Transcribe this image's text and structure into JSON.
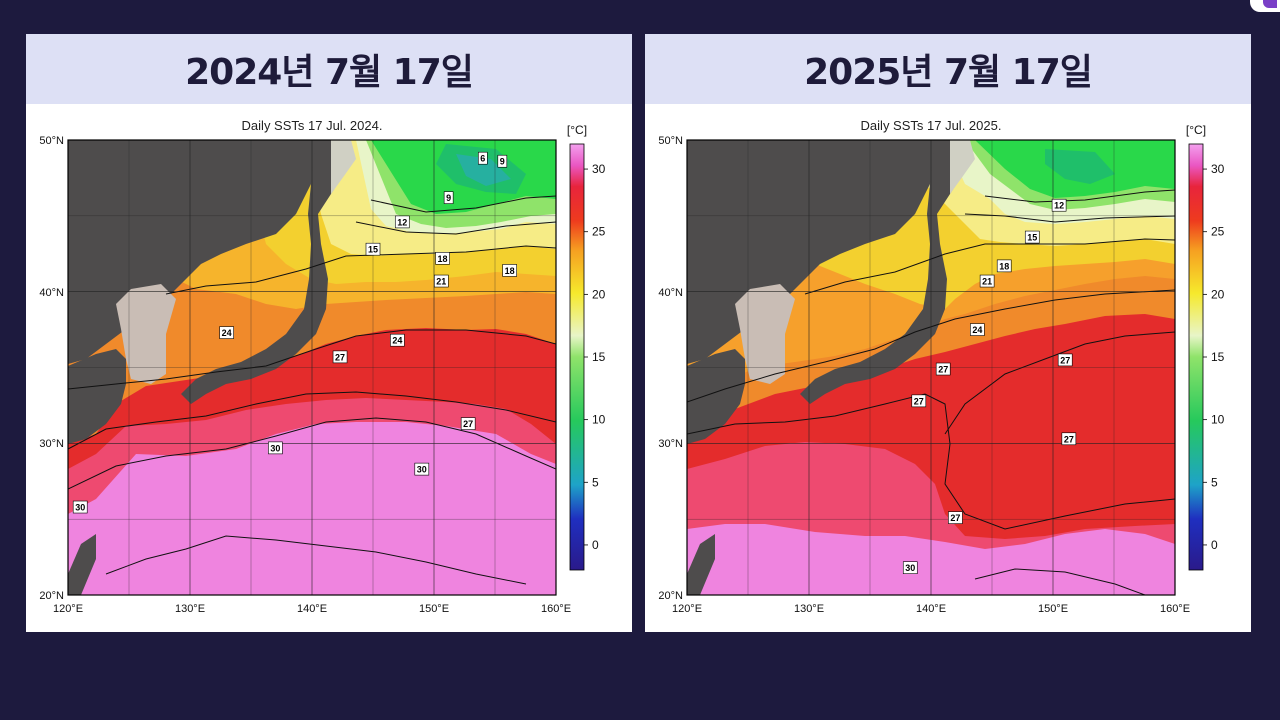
{
  "panels": [
    {
      "heading": "2024년 7월 17일",
      "map_title": "Daily SSTs 17 Jul. 2024.",
      "contours": [
        {
          "label": "6",
          "lon": 154.0,
          "lat": 48.8
        },
        {
          "label": "9",
          "lon": 155.6,
          "lat": 48.6
        },
        {
          "label": "9",
          "lon": 151.2,
          "lat": 46.2
        },
        {
          "label": "12",
          "lon": 147.4,
          "lat": 44.6
        },
        {
          "label": "15",
          "lon": 145.0,
          "lat": 42.8
        },
        {
          "label": "18",
          "lon": 150.7,
          "lat": 42.2
        },
        {
          "label": "18",
          "lon": 156.2,
          "lat": 41.4
        },
        {
          "label": "21",
          "lon": 150.6,
          "lat": 40.7
        },
        {
          "label": "24",
          "lon": 133.0,
          "lat": 37.3
        },
        {
          "label": "24",
          "lon": 147.0,
          "lat": 36.8
        },
        {
          "label": "27",
          "lon": 142.3,
          "lat": 35.7
        },
        {
          "label": "27",
          "lon": 152.8,
          "lat": 31.3
        },
        {
          "label": "30",
          "lon": 137.0,
          "lat": 29.7
        },
        {
          "label": "30",
          "lon": 149.0,
          "lat": 28.3
        },
        {
          "label": "30",
          "lon": 121.0,
          "lat": 25.8
        }
      ]
    },
    {
      "heading": "2025년 7월 17일",
      "map_title": "Daily SSTs 17 Jul. 2025.",
      "contours": [
        {
          "label": "12",
          "lon": 150.5,
          "lat": 45.7
        },
        {
          "label": "15",
          "lon": 148.3,
          "lat": 43.6
        },
        {
          "label": "18",
          "lon": 146.0,
          "lat": 41.7
        },
        {
          "label": "21",
          "lon": 144.6,
          "lat": 40.7
        },
        {
          "label": "24",
          "lon": 143.8,
          "lat": 37.5
        },
        {
          "label": "27",
          "lon": 151.0,
          "lat": 35.5
        },
        {
          "label": "27",
          "lon": 141.0,
          "lat": 34.9
        },
        {
          "label": "27",
          "lon": 139.0,
          "lat": 32.8
        },
        {
          "label": "27",
          "lon": 151.3,
          "lat": 30.3
        },
        {
          "label": "27",
          "lon": 142.0,
          "lat": 25.1
        },
        {
          "label": "30",
          "lon": 138.3,
          "lat": 21.8
        }
      ]
    }
  ],
  "map": {
    "lon_ticks": [
      "120°E",
      "130°E",
      "140°E",
      "150°E",
      "160°E"
    ],
    "lat_ticks": [
      "50°N",
      "40°N",
      "30°N",
      "20°N"
    ],
    "lon_range": [
      120,
      160
    ],
    "lat_range": [
      20,
      50
    ]
  },
  "colorbar": {
    "unit": "[°C]",
    "ticks": [
      "30",
      "25",
      "20",
      "15",
      "10",
      "5",
      "0"
    ],
    "tick_values": [
      30,
      25,
      20,
      15,
      10,
      5,
      0
    ],
    "range": [
      -2,
      32
    ]
  },
  "colors": {
    "background": "#1d1a3e",
    "banner": "#dde0f5",
    "land": "#4e4c4c",
    "korea_land": "#c9bdb5",
    "warm_30": "#ef84df",
    "warm_27": "#e42c2c",
    "warm_24": "#f08a2b",
    "mid_21": "#f3d02f",
    "cool_15": "#f0f5d8",
    "cold_9": "#29d84a"
  }
}
